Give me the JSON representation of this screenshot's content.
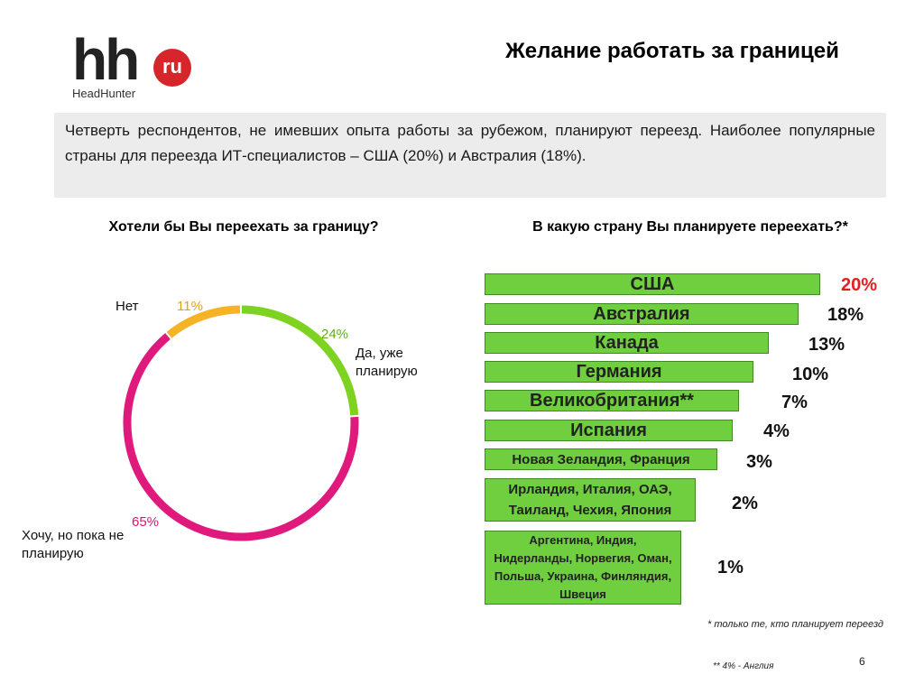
{
  "logo": {
    "brand": "hh",
    "suffix": "ru",
    "subtitle": "HeadHunter"
  },
  "slide_title": "Желание работать за границей",
  "summary": "Четверть респондентов, не имевших опыта работы за рубежом, планируют переезд. Наиболее популярные страны для переезда ИТ-специалистов – США (20%) и Австралия (18%).",
  "chart_data": [
    {
      "type": "pie",
      "title": "Хотели бы Вы переехать за границу?",
      "series": [
        {
          "name": "Да, уже планирую",
          "value": 24,
          "label": "24%",
          "color": "#7ed321"
        },
        {
          "name": "Хочу, но пока не планирую",
          "value": 65,
          "label": "65%",
          "color": "#e0197d"
        },
        {
          "name": "Нет",
          "value": 11,
          "label": "11%",
          "color": "#f5b325"
        }
      ]
    },
    {
      "type": "bar",
      "title": "В какую страну Вы планируете переехать?*",
      "categories": [
        "США",
        "Австралия",
        "Канада",
        "Германия",
        "Великобритания**",
        "Испания",
        "Новая Зеландия, Франция",
        "Ирландия, Италия, ОАЭ, Таиланд, Чехия, Япония",
        "Аргентина, Индия, Нидерланды, Норвегия, Оман, Польша, Украина, Финляндия, Швеция"
      ],
      "values": [
        20,
        18,
        13,
        10,
        7,
        4,
        3,
        2,
        1
      ],
      "value_labels": [
        "20%",
        "18%",
        "13%",
        "10%",
        "7%",
        "4%",
        "3%",
        "2%",
        "1%"
      ],
      "bar_color": "#6fcf3f",
      "highlight_color": "#e32020"
    }
  ],
  "footnotes": {
    "note1": "* только те, кто планирует переезд",
    "note2": "** 4% - Англия"
  },
  "page_number": "6"
}
